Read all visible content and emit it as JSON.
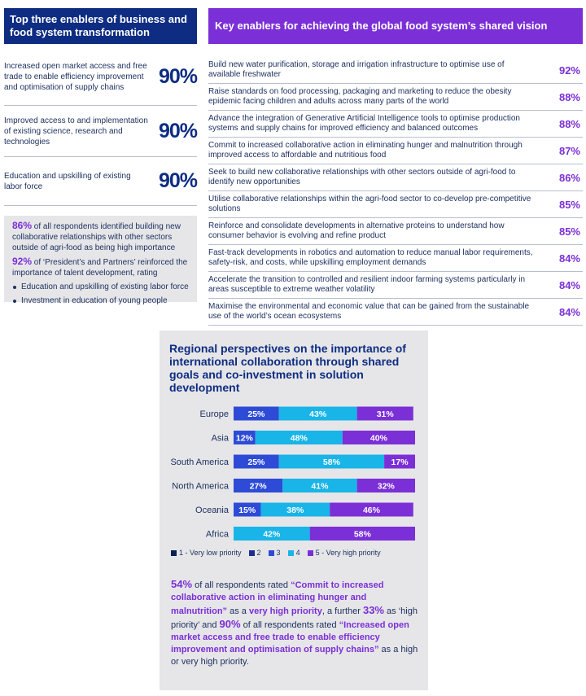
{
  "left": {
    "header": "Top three enablers of business and food system transformation",
    "enablers": [
      {
        "text": "Increased open market access and free trade to enable efficiency improvement and optimisation of supply chains",
        "pct": "90%"
      },
      {
        "text": "Improved access to and implementation of existing science, research and technologies",
        "pct": "90%"
      },
      {
        "text": "Education and upskilling of existing labor force",
        "pct": "90%"
      }
    ],
    "box": {
      "stat1_pct": "86%",
      "stat1_text": " of all respondents identified building new collaborative relationships with other sectors outside of agri-food as being high importance",
      "stat2_pct": "92%",
      "stat2_text": " of ‘President’s and Partners’ reinforced the importance of talent development, rating",
      "bullets": [
        "Education and upskilling of existing labor force",
        "Investment in education of young people"
      ]
    }
  },
  "right": {
    "header": "Key enablers for achieving the global food system’s shared vision",
    "items": [
      {
        "text": "Build new water purification, storage and irrigation infrastructure to optimise use of available freshwater",
        "pct": "92%"
      },
      {
        "text": "Raise standards on food processing, packaging and marketing to reduce the obesity epidemic facing children and adults across many parts of the world",
        "pct": "88%"
      },
      {
        "text": "Advance the integration of Generative Artificial Intelligence tools to optimise production systems and supply chains for improved efficiency and balanced outcomes",
        "pct": "88%"
      },
      {
        "text": "Commit to increased collaborative action in eliminating hunger and malnutrition through improved access to affordable and nutritious food",
        "pct": "87%"
      },
      {
        "text": "Seek to build new collaborative relationships with other sectors outside of agri-food to identify new opportunities",
        "pct": "86%"
      },
      {
        "text": "Utilise collaborative relationships within the agri-food sector to co-develop pre-competitive solutions",
        "pct": "85%"
      },
      {
        "text": "Reinforce and consolidate developments in alternative proteins to understand how consumer behavior is evolving and refine product",
        "pct": "85%"
      },
      {
        "text": "Fast-track developments in robotics and automation to reduce manual labor requirements, safety-risk, and costs, while upskilling employment demands",
        "pct": "84%"
      },
      {
        "text": "Accelerate the transition to controlled and resilient indoor farming systems particularly in areas susceptible to extreme weather volatility",
        "pct": "84%"
      },
      {
        "text": "Maximise the environmental and economic value that can be gained from the sustainable use of the world’s ocean ecosystems",
        "pct": "84%"
      }
    ]
  },
  "chart_data": {
    "type": "bar",
    "orientation": "horizontal",
    "stacked": true,
    "title": "Regional perspectives on the importance of international collaboration through shared goals and co-investment in solution development",
    "categories": [
      "Europe",
      "Asia",
      "South America",
      "North America",
      "Oceania",
      "Africa"
    ],
    "series": [
      {
        "name": "1 - Very low priority",
        "color": "#0d1f4e",
        "values": [
          0,
          0,
          0,
          0,
          0,
          0
        ]
      },
      {
        "name": "2",
        "color": "#1a2f8f",
        "values": [
          0,
          0,
          0,
          0,
          0,
          0
        ]
      },
      {
        "name": "3",
        "color": "#2d4bd6",
        "values": [
          25,
          12,
          25,
          27,
          15,
          0
        ]
      },
      {
        "name": "4",
        "color": "#19b4e8",
        "values": [
          43,
          48,
          58,
          41,
          38,
          42
        ]
      },
      {
        "name": "5 - Very high priority",
        "color": "#7b2fd6",
        "values": [
          31,
          40,
          17,
          32,
          46,
          58
        ]
      }
    ],
    "xlim": [
      0,
      100
    ],
    "legend_position": "bottom"
  },
  "note": {
    "p1": "54%",
    "t1": " of all respondents rated ",
    "q1": "“Commit to increased collaborative action in eliminating hunger and malnutrition”",
    "t2": " as a ",
    "b1": "very high priority",
    "t3": ", a further ",
    "p2": "33%",
    "t4": " as ‘high priority’ and ",
    "p3": "90%",
    "t5": " of all respondents rated ",
    "q2": "“Increased open market access and free trade to enable efficiency improvement and optimisation of supply chains”",
    "t6": " as a high or very high priority."
  }
}
